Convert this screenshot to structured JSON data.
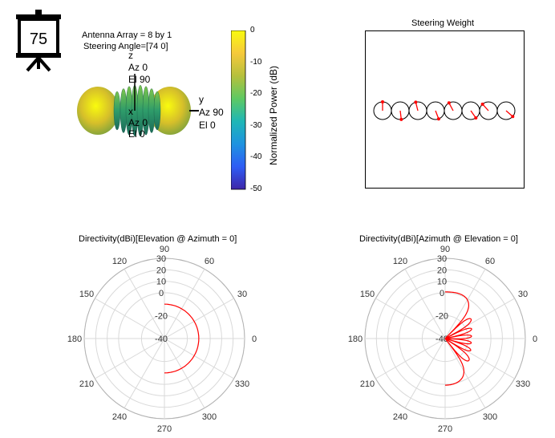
{
  "badge": {
    "number": "75",
    "icon": "presentation-board-icon"
  },
  "pattern3d": {
    "info_line1": "Antenna Array = 8 by 1",
    "info_line2": "Steering Angle=[74 0]",
    "z_axis": [
      "z",
      "Az 0",
      "El 90"
    ],
    "y_axis": [
      "y",
      "Az 90",
      "El 0"
    ],
    "x_axis": [
      "x",
      "Az 0",
      "El 0"
    ]
  },
  "colorbar": {
    "label": "Normalized Power (dB)",
    "ticks": [
      "0",
      "-10",
      "-20",
      "-30",
      "-40",
      "-50"
    ],
    "range": [
      -50,
      0
    ],
    "colormap": [
      "#3e26a8",
      "#2e5df5",
      "#1e93e0",
      "#1fb7b6",
      "#5ec962",
      "#b6c03c",
      "#f6c93b",
      "#f9fb0e"
    ]
  },
  "steering": {
    "title": "Steering Weight",
    "element_count": 8,
    "phase_degrees": [
      0,
      173,
      346,
      159,
      332,
      145,
      318,
      131
    ],
    "arrow_color": "#ff0000"
  },
  "chart_data": [
    {
      "type": "polar",
      "title": "Directivity(dBi)[Elevation @ Azimuth = 0]",
      "angle_ticks": [
        "0",
        "30",
        "60",
        "90",
        "120",
        "150",
        "180",
        "210",
        "240",
        "270",
        "300",
        "330"
      ],
      "radial_ticks": [
        "-40",
        "-20",
        "0",
        "10",
        "20",
        "30"
      ],
      "radial_range": [
        -40,
        30
      ],
      "series": [
        {
          "color": "#ff0000",
          "theta_deg": [
            90,
            80,
            70,
            60,
            50,
            40,
            30,
            20,
            10,
            0,
            -10,
            -20,
            -30,
            -40,
            -50,
            -60,
            -70,
            -80,
            -90
          ],
          "r_dbi": [
            -10,
            -10,
            -10,
            -10,
            -10,
            -10,
            -10,
            -10,
            -10,
            -10,
            -10,
            -10,
            -10,
            -10,
            -10,
            -10,
            -10,
            -10,
            -10
          ]
        }
      ]
    },
    {
      "type": "polar",
      "title": "Directivity(dBi)[Azimuth @ Elevation = 0]",
      "angle_ticks": [
        "0",
        "30",
        "60",
        "90",
        "120",
        "150",
        "180",
        "210",
        "240",
        "270",
        "300",
        "330"
      ],
      "radial_ticks": [
        "-40",
        "-20",
        "0",
        "10",
        "20",
        "30"
      ],
      "radial_range": [
        -40,
        30
      ],
      "series": [
        {
          "color": "#ff0000",
          "element_count": 8,
          "steer_deg": 74,
          "element_gain_dbi": 2
        }
      ]
    }
  ]
}
